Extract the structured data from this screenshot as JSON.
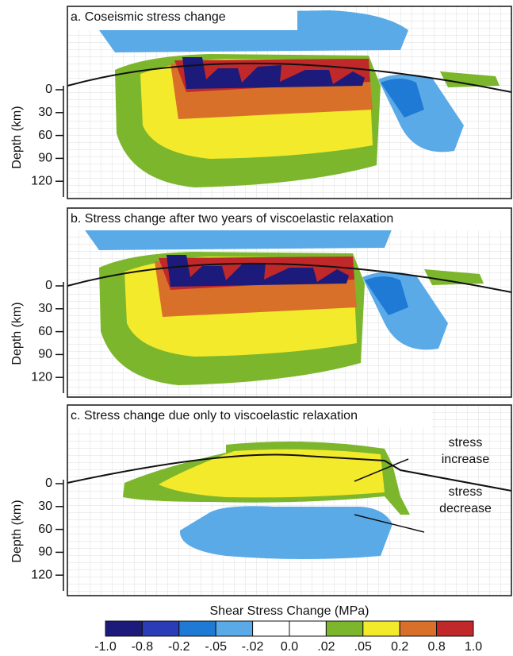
{
  "panels": [
    {
      "title": "a. Coseismic stress change",
      "ylabel": "Depth (km)",
      "yticks": [
        0,
        30,
        60,
        90,
        120
      ]
    },
    {
      "title": "b. Stress change after two years of  viscoelastic relaxation",
      "ylabel": "Depth (km)",
      "yticks": [
        0,
        30,
        60,
        90,
        120
      ]
    },
    {
      "title": "c. Stress change due only to  viscoelastic  relaxation",
      "ylabel": "Depth (km)",
      "yticks": [
        0,
        30,
        60,
        90,
        120
      ],
      "annotations": [
        [
          "stress",
          "increase"
        ],
        [
          "stress",
          "decrease"
        ]
      ]
    }
  ],
  "colorbar": {
    "title": "Shear Stress Change (MPa)",
    "colors": [
      "#1c1a7a",
      "#2a3cb8",
      "#1f7ad6",
      "#5aaae8",
      "#ffffff",
      "#ffffff",
      "#7cb62c",
      "#f3ea2c",
      "#d8702a",
      "#c0282a"
    ],
    "ticks": [
      "-1.0",
      "-0.8",
      "-0.2",
      "-.05",
      "-.02",
      "0.0",
      ".02",
      ".05",
      "0.2",
      "0.8",
      "1.0"
    ]
  }
}
